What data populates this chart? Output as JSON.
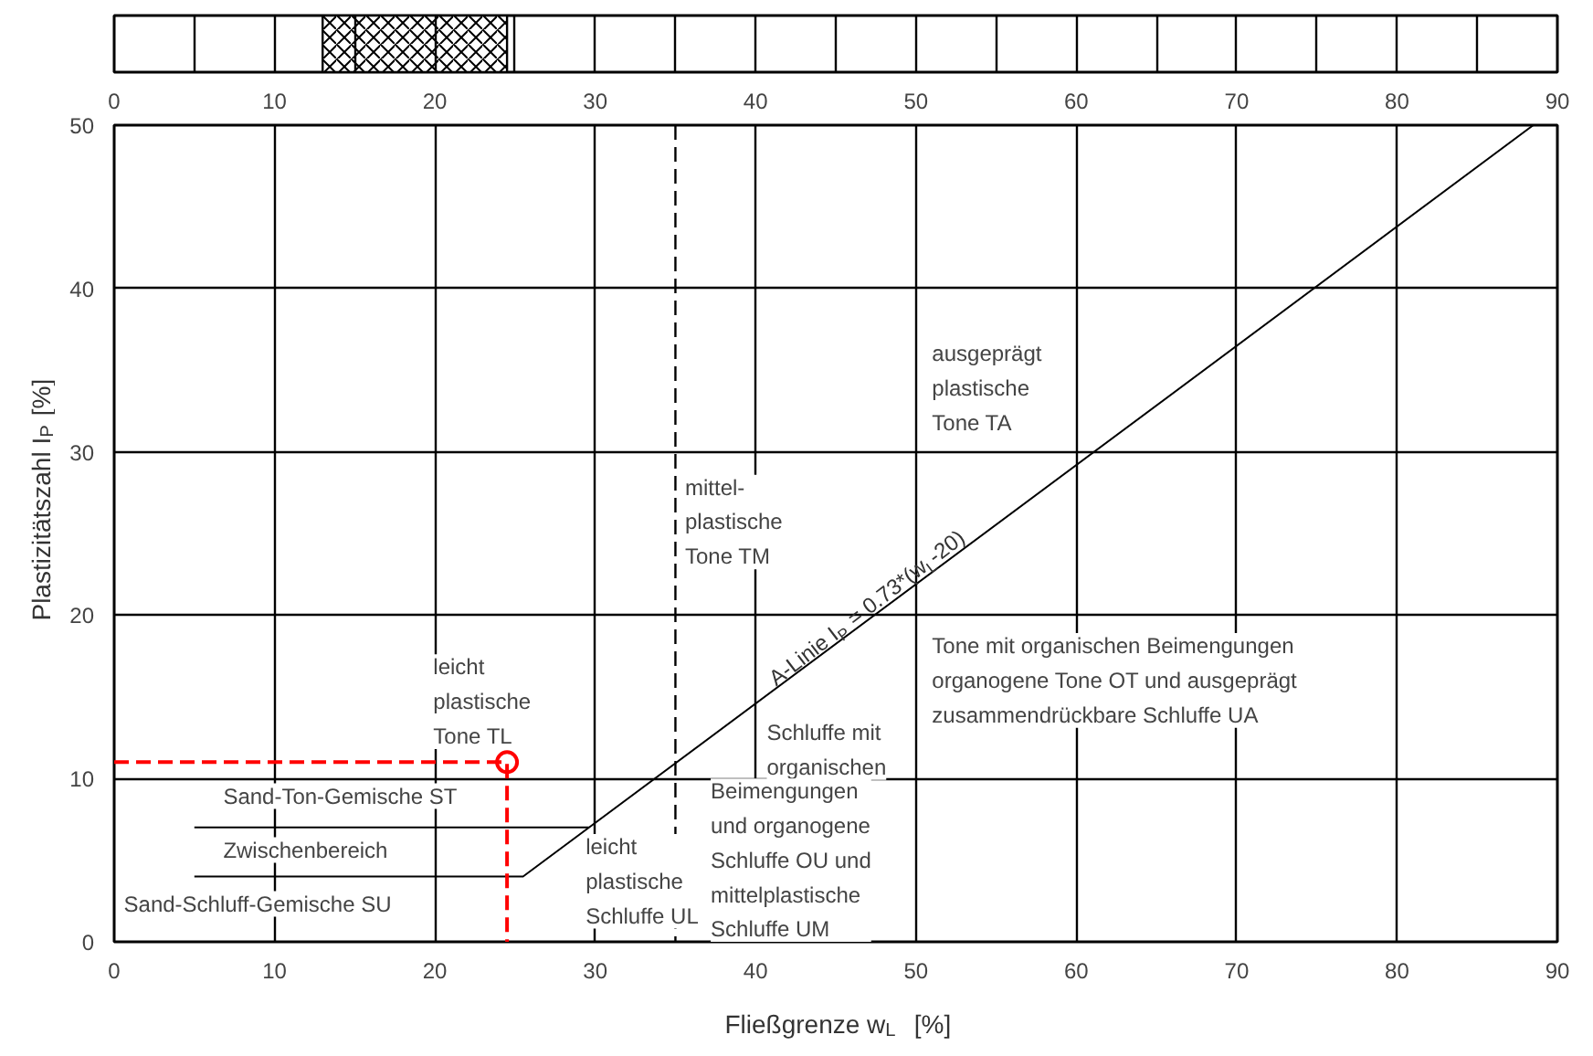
{
  "chart_data": [
    {
      "type": "bar",
      "orientation": "horizontal",
      "categories": [
        null
      ],
      "base": [
        13
      ],
      "values": [
        11.5
      ],
      "color": "#000000",
      "xlim": [
        0,
        90
      ],
      "xticks": [
        0,
        {
          "value": 5,
          "label": null
        },
        10,
        {
          "value": 15,
          "label": null
        },
        20,
        {
          "value": 25,
          "label": null
        },
        30,
        {
          "value": 35,
          "label": null
        },
        40,
        {
          "value": 45,
          "label": null
        },
        50,
        {
          "value": 55,
          "label": null
        },
        60,
        {
          "value": 65,
          "label": null
        },
        70,
        {
          "value": 75,
          "label": null
        },
        80,
        {
          "value": 85,
          "label": null
        },
        90
      ],
      "grid": "x",
      "tick_labels": "x"
    },
    {
      "type": "line",
      "xlabel": "Fließgrenze w$_{L}$  [%]",
      "ylabel": "Plastizitätszahl I$_{P}$ [%]",
      "xlim": [
        0,
        90
      ],
      "ylim": [
        0,
        50
      ],
      "xticks": [
        0,
        10,
        20,
        30,
        40,
        50,
        60,
        70,
        80,
        90
      ],
      "yticks": [
        0,
        10,
        20,
        30,
        40,
        50
      ],
      "grid": true,
      "series": [
        {
          "type": "line",
          "color": "#000000",
          "x": [
            5,
            25.5,
            88.5
          ],
          "values": [
            4,
            4,
            50
          ]
        },
        {
          "type": "line",
          "color": "#000000",
          "x": [
            5,
            29.6
          ],
          "values": [
            7,
            7
          ]
        },
        {
          "type": "line",
          "color": "#ff0000",
          "line_style": "dashed",
          "x": [
            0,
            24.5,
            24.5
          ],
          "values": [
            11,
            11,
            0
          ]
        },
        {
          "type": "scatter",
          "marker": "circle",
          "color": "#ff0000",
          "x": [
            24.5
          ],
          "values": [
            11
          ]
        }
      ],
      "ref_lines": [
        {
          "axis": "x",
          "value": 35,
          "label": null,
          "line_style": "dashed",
          "color": "#000000"
        }
      ],
      "annotations": [
        {
          "text": "A-Linie I$_{P}$ = 0.73*(w$_{L}$-20)",
          "x": 41,
          "y": 15.3
        },
        "ausgeprägt\nplastische\nTone TA",
        "mittel-\nplastische\nTone TM",
        "Tone mit organischen Beimengungen\norganogene Tone OT und ausgeprägt\nzusammendrückbare Schluffe UA",
        "Schluffe mit\norganischen",
        "Beimengungen\nund organogene\nSchluffe OU und\nmittelplastische\nSchluffe UM",
        "leicht\nplastische\nTone TL",
        "Sand-Ton-Gemische ST",
        "Zwischenbereich",
        "Sand-Schluff-Gemische SU",
        "leicht\nplastische\nSchluffe UL"
      ]
    }
  ]
}
